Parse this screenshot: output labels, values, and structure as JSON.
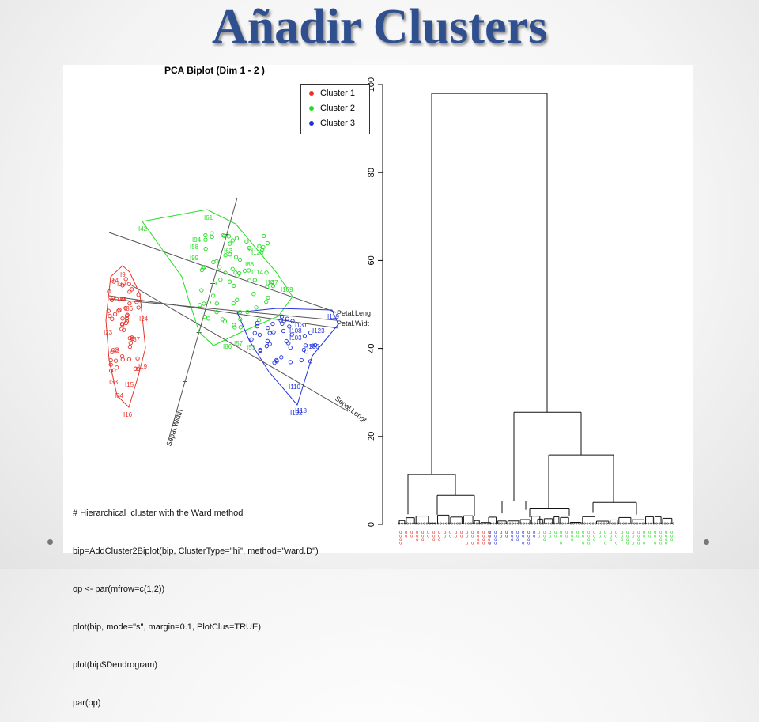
{
  "slide": {
    "title": "Añadir Clusters"
  },
  "biplot": {
    "title": "PCA Biplot (Dim 1 - 2 )",
    "legend": [
      {
        "label": "Cluster 1",
        "color": "#e8332a"
      },
      {
        "label": "Cluster 2",
        "color": "#22dd22"
      },
      {
        "label": "Cluster 3",
        "color": "#2233dd"
      }
    ],
    "axis_labels": [
      "Petal.Leng",
      "Petal.Widt",
      "Sepal.Lengt",
      "Sepal.Width"
    ],
    "point_labels": [
      "I61",
      "I42",
      "I94",
      "I58",
      "I99",
      "I63",
      "I120",
      "I88",
      "I114",
      "I147",
      "I109",
      "I9",
      "I14",
      "I39",
      "I23",
      "I36",
      "I24",
      "I37",
      "I19",
      "I33",
      "I15",
      "I34",
      "I16",
      "I131",
      "I108",
      "I123",
      "I103",
      "I106",
      "I119",
      "I110",
      "I118",
      "I132",
      "I86",
      "I57",
      "I51"
    ]
  },
  "code": {
    "lines": [
      "# Hierarchical  cluster with the Ward method",
      "bip=AddCluster2Biplot(bip, ClusterType=\"hi\", method=\"ward.D\")",
      "op <- par(mfrow=c(1,2))",
      "plot(bip, mode=\"s\", margin=0.1, PlotClus=TRUE)",
      "plot(bip$Dendrogram)",
      "par(op)"
    ]
  },
  "chart_data": {
    "type": "dendrogram",
    "title": "",
    "ylim": [
      0,
      100
    ],
    "y_ticks": [
      0,
      20,
      40,
      60,
      80,
      100
    ],
    "merges": [
      {
        "height": 98,
        "children": [
          "A",
          "B"
        ]
      },
      {
        "height": 25.5,
        "children": [
          "B1",
          "B2"
        ]
      },
      {
        "height": 15.8,
        "children": [
          "B2a",
          "B2b"
        ]
      },
      {
        "height": 11.3,
        "children": [
          "A1",
          "A2"
        ]
      },
      {
        "height": 6.6,
        "children": [
          "A2a",
          "A2b"
        ]
      },
      {
        "height": 5.3,
        "children": [
          "B1a",
          "B1b"
        ]
      },
      {
        "height": 5.0,
        "children": [
          "B2b1",
          "B2b2"
        ]
      },
      {
        "height": 3.5,
        "children": [
          "B2a1",
          "B2a2"
        ]
      }
    ],
    "leaf_groups": [
      {
        "cluster": "Cluster 1",
        "color": "#e8332a"
      },
      {
        "cluster": "Cluster 3",
        "color": "#2233dd"
      },
      {
        "cluster": "Cluster 2",
        "color": "#22dd22"
      }
    ]
  }
}
